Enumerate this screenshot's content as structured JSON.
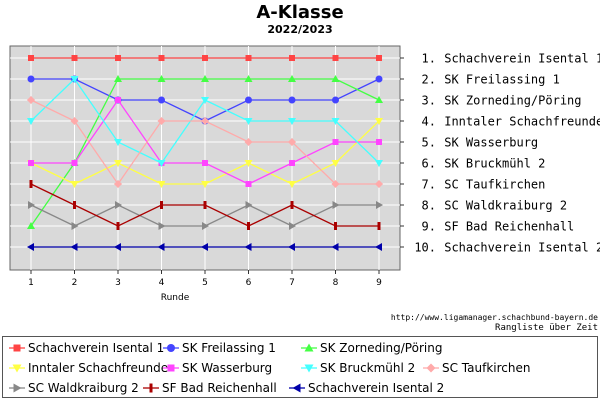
{
  "chart_data": {
    "type": "line",
    "title": "A-Klasse",
    "subtitle": "2022/2023",
    "xlabel": "Runde",
    "x": [
      1,
      2,
      3,
      4,
      5,
      6,
      7,
      8,
      9
    ],
    "ylim": [
      1,
      10
    ],
    "y_inverted": true,
    "grid": true,
    "ranking_labels": [
      "1. Schachverein Isental 1",
      "2. SK Freilassing 1",
      "3. SK Zorneding/Pöring",
      "4. Inntaler Schachfreunde",
      "5. SK Wasserburg",
      "6. SK Bruckmühl 2",
      "7. SC Taufkirchen",
      "8. SC Waldkraiburg 2",
      "9. SF Bad Reichenhall",
      "10. Schachverein Isental 2"
    ],
    "series": [
      {
        "name": "Schachverein Isental 1",
        "color": "#ff4444",
        "marker": "square",
        "values": [
          1,
          1,
          1,
          1,
          1,
          1,
          1,
          1,
          1
        ]
      },
      {
        "name": "SK Freilassing 1",
        "color": "#4444ff",
        "marker": "circle",
        "values": [
          2,
          2,
          3,
          3,
          4,
          3,
          3,
          3,
          2
        ]
      },
      {
        "name": "SK Zorneding/Pöring",
        "color": "#44ff44",
        "marker": "triangle",
        "values": [
          9,
          6,
          2,
          2,
          2,
          2,
          2,
          2,
          3
        ]
      },
      {
        "name": "Inntaler Schachfreunde",
        "color": "#ffff44",
        "marker": "tri-down",
        "values": [
          6,
          7,
          6,
          7,
          7,
          6,
          7,
          6,
          4
        ]
      },
      {
        "name": "SK Wasserburg",
        "color": "#ff44ff",
        "marker": "square",
        "values": [
          6,
          6,
          3,
          6,
          6,
          7,
          6,
          5,
          5
        ]
      },
      {
        "name": "SK Bruckmühl 2",
        "color": "#44ffff",
        "marker": "tri-down",
        "values": [
          4,
          2,
          5,
          6,
          3,
          4,
          4,
          4,
          6
        ]
      },
      {
        "name": "SC Taufkirchen",
        "color": "#ffaaaa",
        "marker": "diamond",
        "values": [
          3,
          4,
          7,
          4,
          4,
          5,
          5,
          7,
          7
        ]
      },
      {
        "name": "SC Waldkraiburg 2",
        "color": "#888888",
        "marker": "tri-right",
        "values": [
          8,
          9,
          8,
          9,
          9,
          8,
          9,
          8,
          8
        ]
      },
      {
        "name": "SF Bad Reichenhall",
        "color": "#aa0000",
        "marker": "bar",
        "values": [
          7,
          8,
          9,
          8,
          8,
          9,
          8,
          9,
          9
        ]
      },
      {
        "name": "Schachverein Isental 2",
        "color": "#0000aa",
        "marker": "tri-left",
        "values": [
          10,
          10,
          10,
          10,
          10,
          10,
          10,
          10,
          10
        ]
      }
    ],
    "source_text": "http://www.ligamanager.schachbund-bayern.de",
    "note_text": "Rangliste über Zeit",
    "legend_position": "bottom"
  }
}
